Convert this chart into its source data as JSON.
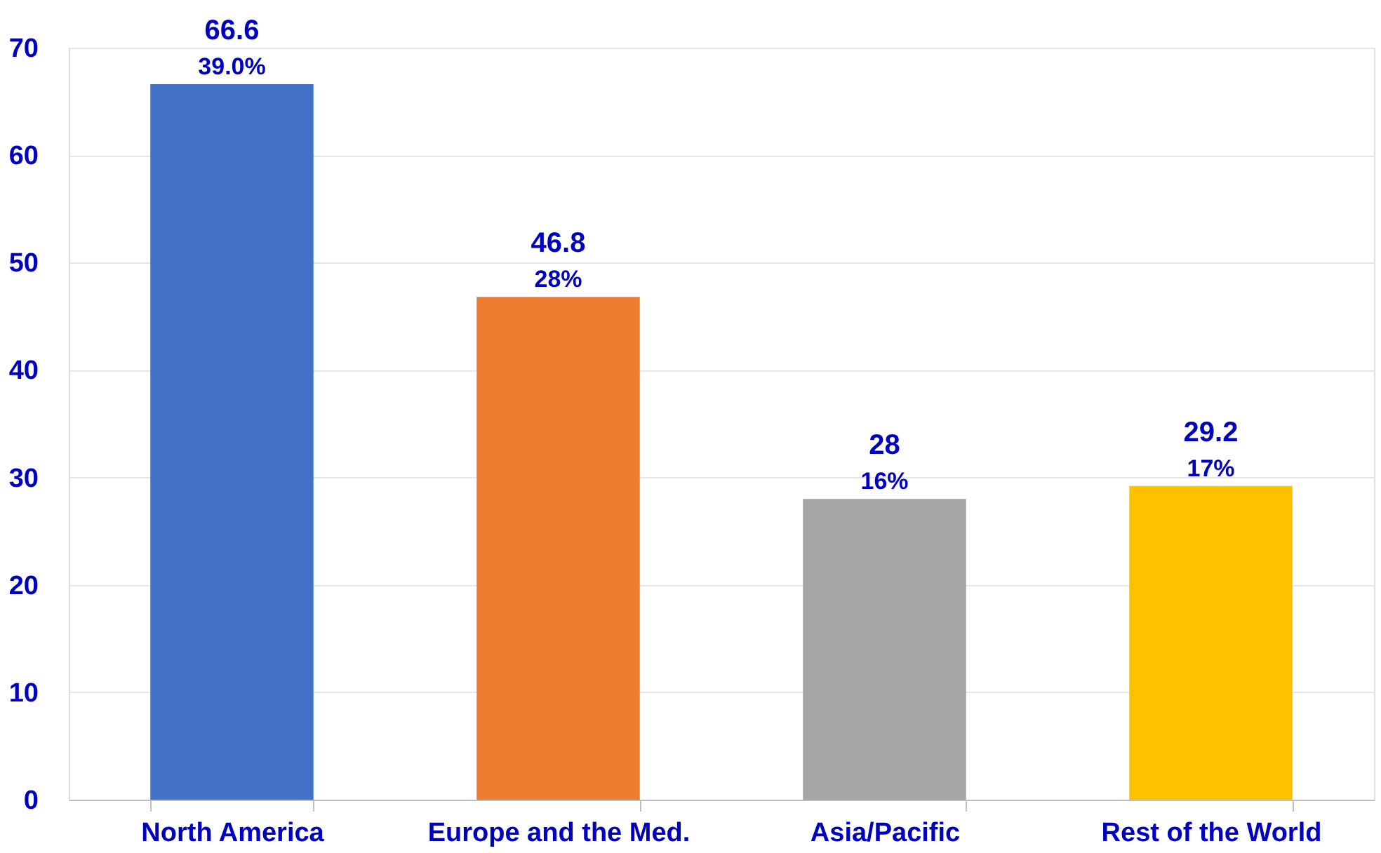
{
  "chart_data": {
    "type": "bar",
    "categories": [
      "North America",
      "Europe and the Med.",
      "Asia/Pacific",
      "Rest of the World"
    ],
    "values": [
      66.6,
      46.8,
      28,
      29.2
    ],
    "colors": [
      "#4472c4",
      "#ed7d31",
      "#a5a5a5",
      "#ffc000"
    ],
    "ylim": [
      0,
      70
    ],
    "yticks": [
      0,
      10,
      20,
      30,
      40,
      50,
      60,
      70
    ],
    "grid": "y",
    "data_labels": true,
    "annotations": [
      {
        "text": "39.0%",
        "x": "North America",
        "y": 66.6
      },
      {
        "text": "28%",
        "x": "Europe and the Med.",
        "y": 46.8
      },
      {
        "text": "16%",
        "x": "Asia/Pacific",
        "y": 28
      },
      {
        "text": "17%",
        "x": "Rest of the World",
        "y": 29.2
      }
    ]
  }
}
